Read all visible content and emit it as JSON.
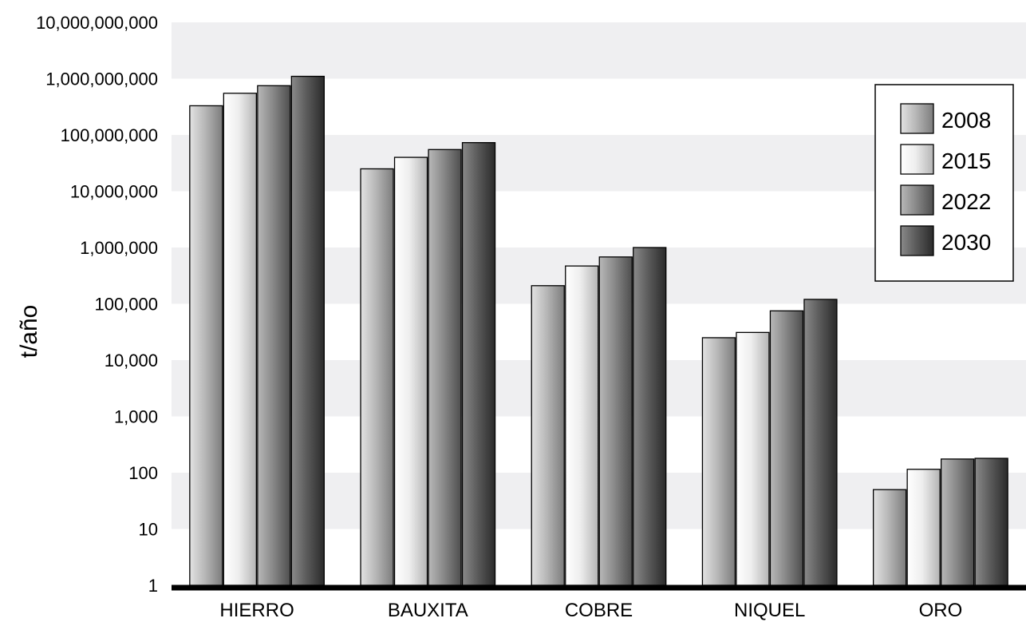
{
  "chart_data": {
    "type": "bar",
    "title": "",
    "xlabel": "",
    "ylabel": "t/año",
    "yscale": "log",
    "ylim": [
      1,
      10000000000
    ],
    "y_ticks": [
      {
        "value": 1,
        "label": "1"
      },
      {
        "value": 10,
        "label": "10"
      },
      {
        "value": 100,
        "label": "100"
      },
      {
        "value": 1000,
        "label": "1,000"
      },
      {
        "value": 10000,
        "label": "10,000"
      },
      {
        "value": 100000,
        "label": "100,000"
      },
      {
        "value": 1000000,
        "label": "1,000,000"
      },
      {
        "value": 10000000,
        "label": "10,000,000"
      },
      {
        "value": 100000000,
        "label": "100,000,000"
      },
      {
        "value": 1000000000,
        "label": "1,000,000,000"
      },
      {
        "value": 10000000000,
        "label": "10,000,000,000"
      }
    ],
    "grid": "alternating horizontal bands",
    "legend_position": "top-right",
    "categories": [
      "HIERRO",
      "BAUXITA",
      "COBRE",
      "NIQUEL",
      "ORO"
    ],
    "series": [
      {
        "name": "2008",
        "values": [
          330000000,
          25000000,
          210000,
          25000,
          50
        ]
      },
      {
        "name": "2015",
        "values": [
          550000000,
          40000000,
          470000,
          31000,
          115
        ]
      },
      {
        "name": "2022",
        "values": [
          750000000,
          55000000,
          680000,
          75000,
          175
        ]
      },
      {
        "name": "2030",
        "values": [
          1100000000,
          73000000,
          1000000,
          120000,
          180
        ]
      }
    ],
    "series_colors": {
      "2008": {
        "light": "#e2e2e2",
        "mid": "#b8b8b8",
        "dark": "#7c7c7c"
      },
      "2015": {
        "light": "#ffffff",
        "mid": "#eeeeee",
        "dark": "#b4b4b4"
      },
      "2022": {
        "light": "#b8b8b8",
        "mid": "#8a8a8a",
        "dark": "#4e4e4e"
      },
      "2030": {
        "light": "#8a8a8a",
        "mid": "#5c5c5c",
        "dark": "#2a2a2a"
      }
    }
  }
}
